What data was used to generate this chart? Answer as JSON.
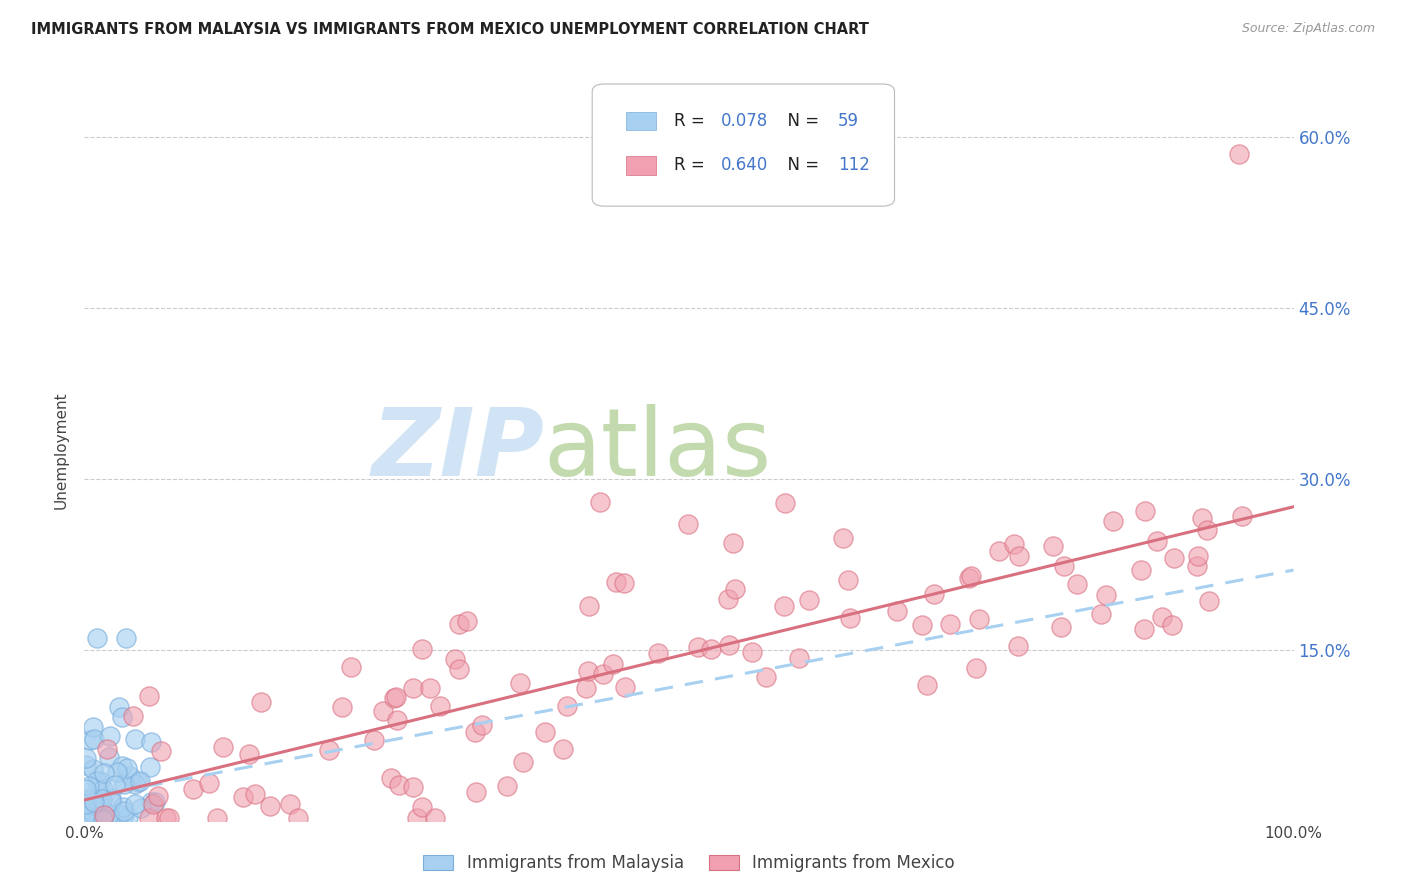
{
  "title": "IMMIGRANTS FROM MALAYSIA VS IMMIGRANTS FROM MEXICO UNEMPLOYMENT CORRELATION CHART",
  "source": "Source: ZipAtlas.com",
  "ylabel": "Unemployment",
  "xlim": [
    0,
    1.0
  ],
  "ylim": [
    0,
    0.65
  ],
  "yticks": [
    0.0,
    0.15,
    0.3,
    0.45,
    0.6
  ],
  "malaysia_color": "#A8D0F0",
  "malaysia_edge": "#7AAEDD",
  "mexico_color": "#F0A0B0",
  "mexico_edge": "#D97080",
  "malaysia_R": 0.078,
  "malaysia_N": 59,
  "mexico_R": 0.64,
  "mexico_N": 112,
  "blue_text": "#4477CC",
  "background_color": "#ffffff",
  "grid_color": "#cccccc",
  "title_fontsize": 10.5,
  "source_fontsize": 9,
  "legend_text_color_RN": "#4477CC",
  "legend_text_color_label": "#333333",
  "watermark_zip_color": "#C8E0F4",
  "watermark_atlas_color": "#B8D4A0"
}
